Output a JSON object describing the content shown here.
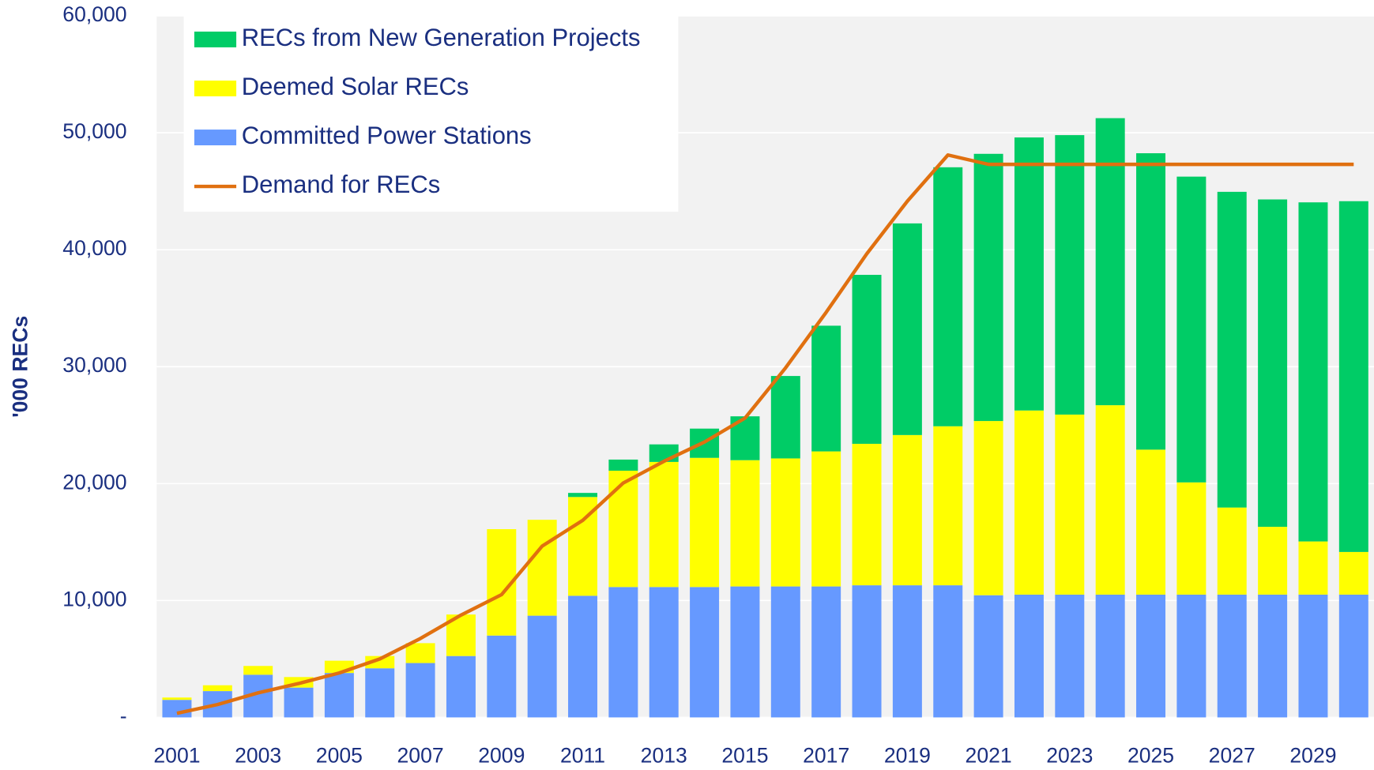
{
  "chart_data": {
    "type": "bar",
    "y_label": "'000 RECs",
    "categories": [
      "2001",
      null,
      "2003",
      null,
      "2005",
      null,
      "2007",
      null,
      "2009",
      null,
      "2011",
      null,
      "2013",
      null,
      "2015",
      null,
      "2017",
      null,
      "2019",
      null,
      "2021",
      null,
      "2023",
      null,
      "2025",
      null,
      "2027",
      null,
      "2029",
      null
    ],
    "series": [
      {
        "name": "RECs from New Generation Projects",
        "type": "bar",
        "color": "#00cc66",
        "values": [
          0,
          0,
          0,
          0,
          0,
          0,
          0,
          0,
          0,
          0,
          350,
          950,
          1500,
          2500,
          3750,
          7050,
          10750,
          14450,
          18100,
          22150,
          22850,
          23350,
          23900,
          24550,
          25350,
          26150,
          27000,
          28000,
          29000,
          30000
        ]
      },
      {
        "name": "Deemed Solar RECs",
        "type": "bar",
        "color": "#ffff00",
        "values": [
          200,
          500,
          750,
          900,
          1050,
          1050,
          1700,
          3550,
          9100,
          8200,
          8450,
          9950,
          10700,
          11050,
          10800,
          10950,
          11550,
          12100,
          12850,
          13600,
          14900,
          15750,
          15400,
          16200,
          12400,
          9600,
          7450,
          5800,
          4550,
          3650
        ]
      },
      {
        "name": "Committed Power Stations",
        "type": "bar",
        "color": "#6699ff",
        "values": [
          1500,
          2250,
          3650,
          2550,
          3800,
          4200,
          4650,
          5250,
          7000,
          8700,
          10400,
          11150,
          11150,
          11150,
          11200,
          11200,
          11200,
          11300,
          11300,
          11300,
          10450,
          10500,
          10500,
          10500,
          10500,
          10500,
          10500,
          10500,
          10500,
          10500
        ]
      },
      {
        "name": "Demand for RECs",
        "type": "line",
        "color": "#e07010",
        "values": [
          350,
          1100,
          2100,
          2900,
          3800,
          5000,
          6750,
          8750,
          10500,
          14650,
          16850,
          20050,
          21900,
          23550,
          25600,
          29900,
          34650,
          39650,
          44150,
          48100,
          47300,
          47300,
          47300,
          47300,
          47300,
          47300,
          47300,
          47300,
          47300,
          47300
        ]
      }
    ],
    "ylim": [
      0,
      60000
    ],
    "yticks": [
      {
        "value": 0,
        "label": "-"
      },
      {
        "value": 10000,
        "label": "10,000"
      },
      {
        "value": 20000,
        "label": "20,000"
      },
      {
        "value": 30000,
        "label": "30,000"
      },
      {
        "value": 40000,
        "label": "40,000"
      },
      {
        "value": 50000,
        "label": "50,000"
      },
      {
        "value": 60000,
        "label": "60,000"
      }
    ],
    "grid": true,
    "legend": "upper left"
  }
}
